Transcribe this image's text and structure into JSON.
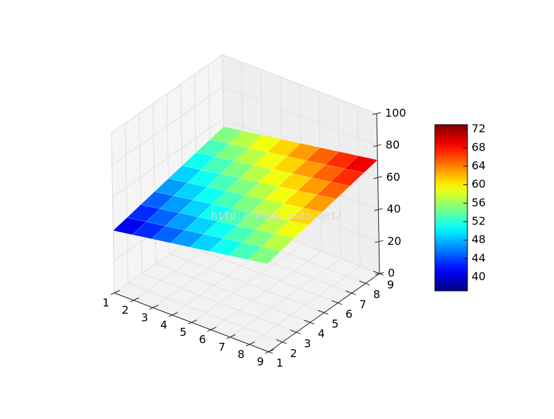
{
  "watermark": "http://blog.csdn.net/",
  "chart_data": {
    "type": "surface",
    "title": "",
    "xlabel": "",
    "ylabel": "",
    "zlabel": "",
    "x": [
      1,
      2,
      3,
      4,
      5,
      6,
      7,
      8,
      9
    ],
    "y": [
      1,
      2,
      3,
      4,
      5,
      6,
      7,
      8,
      9
    ],
    "z_formula": "z = 2*x + 2*y + 35",
    "z": [
      [
        39,
        41,
        43,
        45,
        47,
        49,
        51,
        53,
        55
      ],
      [
        41,
        43,
        45,
        47,
        49,
        51,
        53,
        55,
        57
      ],
      [
        43,
        45,
        47,
        49,
        51,
        53,
        55,
        57,
        59
      ],
      [
        45,
        47,
        49,
        51,
        53,
        55,
        57,
        59,
        61
      ],
      [
        47,
        49,
        51,
        53,
        55,
        57,
        59,
        61,
        63
      ],
      [
        49,
        51,
        53,
        55,
        57,
        59,
        61,
        63,
        65
      ],
      [
        51,
        53,
        55,
        57,
        59,
        61,
        63,
        65,
        67
      ],
      [
        53,
        55,
        57,
        59,
        61,
        63,
        65,
        67,
        69
      ],
      [
        55,
        57,
        59,
        61,
        63,
        65,
        67,
        69,
        71
      ]
    ],
    "xlim": [
      1,
      9
    ],
    "ylim": [
      1,
      9
    ],
    "zlim": [
      0,
      100
    ],
    "x_ticks": [
      "1",
      "2",
      "3",
      "4",
      "5",
      "6",
      "7",
      "8",
      "9"
    ],
    "y_ticks": [
      "1",
      "2",
      "3",
      "4",
      "5",
      "6",
      "7",
      "8",
      "9"
    ],
    "z_ticks": [
      "0",
      "20",
      "40",
      "60",
      "80",
      "100"
    ],
    "colormap": "jet",
    "colorbar": {
      "range": [
        37.0,
        73.0
      ],
      "ticks": [
        "40",
        "44",
        "48",
        "52",
        "56",
        "60",
        "64",
        "68",
        "72"
      ],
      "placement": "right"
    },
    "grid": true
  }
}
